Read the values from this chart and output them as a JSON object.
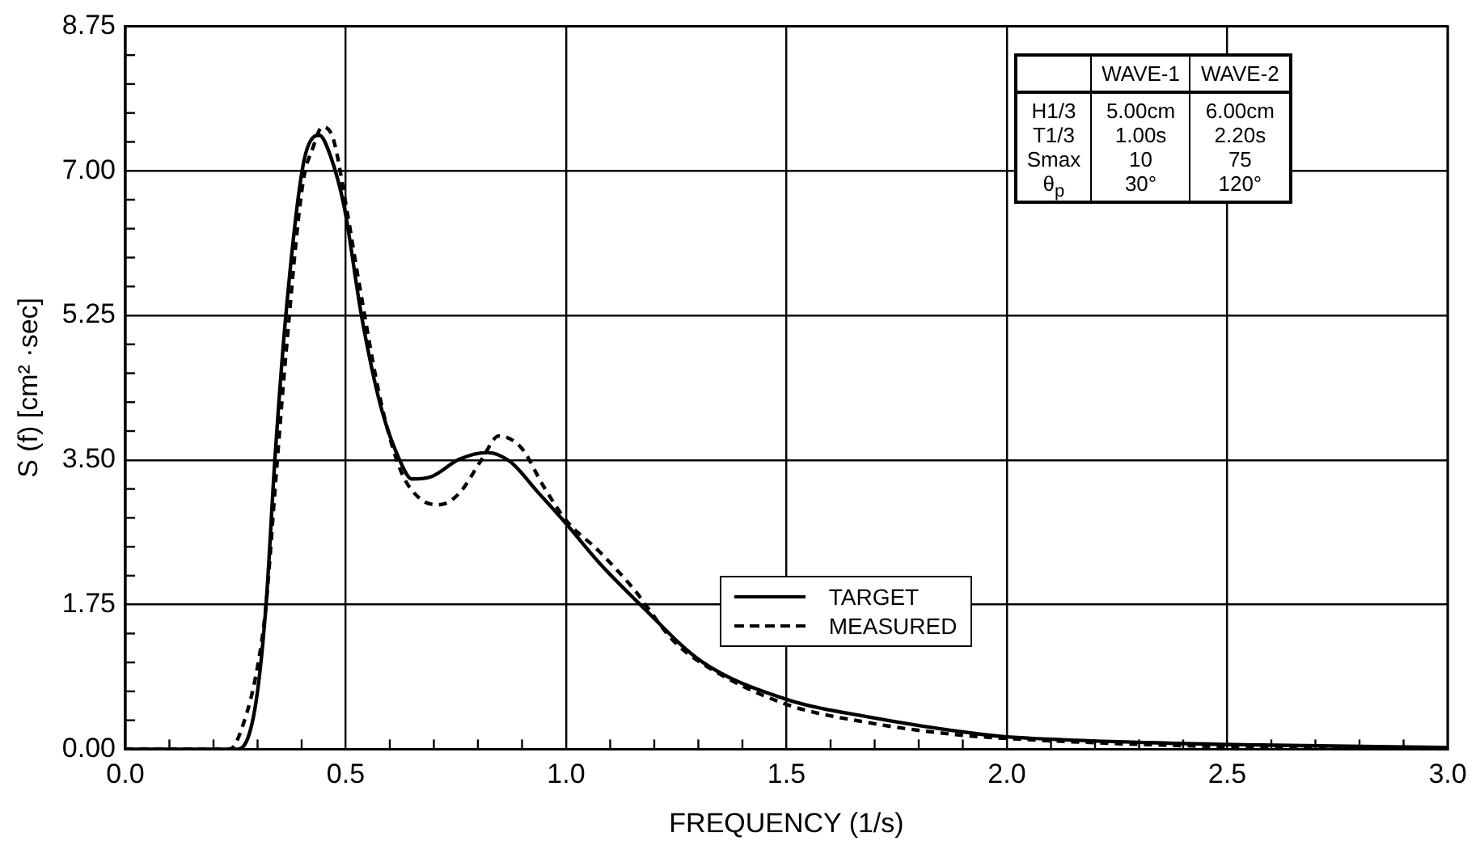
{
  "chart_data": {
    "type": "line",
    "xlabel": "FREQUENCY (1/s)",
    "ylabel": "S (f) [cm² ·sec]",
    "xlim": [
      0,
      3
    ],
    "ylim": [
      0,
      8.75
    ],
    "xticks": [
      {
        "value": 0,
        "label": "0.0"
      },
      {
        "value": 0.1,
        "label": null
      },
      {
        "value": 0.2,
        "label": null
      },
      {
        "value": 0.3,
        "label": null
      },
      {
        "value": 0.4,
        "label": null
      },
      {
        "value": 0.5,
        "label": "0.5"
      },
      {
        "value": 0.6,
        "label": null
      },
      {
        "value": 0.7,
        "label": null
      },
      {
        "value": 0.8,
        "label": null
      },
      {
        "value": 0.9,
        "label": null
      },
      {
        "value": 1,
        "label": "1.0"
      },
      {
        "value": 1.1,
        "label": null
      },
      {
        "value": 1.2,
        "label": null
      },
      {
        "value": 1.3,
        "label": null
      },
      {
        "value": 1.4,
        "label": null
      },
      {
        "value": 1.5,
        "label": "1.5"
      },
      {
        "value": 1.6,
        "label": null
      },
      {
        "value": 1.7,
        "label": null
      },
      {
        "value": 1.8,
        "label": null
      },
      {
        "value": 1.9,
        "label": null
      },
      {
        "value": 2,
        "label": "2.0"
      },
      {
        "value": 2.1,
        "label": null
      },
      {
        "value": 2.2,
        "label": null
      },
      {
        "value": 2.3,
        "label": null
      },
      {
        "value": 2.4,
        "label": null
      },
      {
        "value": 2.5,
        "label": "2.5"
      },
      {
        "value": 2.6,
        "label": null
      },
      {
        "value": 2.7,
        "label": null
      },
      {
        "value": 2.8,
        "label": null
      },
      {
        "value": 2.9,
        "label": null
      },
      {
        "value": 3,
        "label": "3.0"
      }
    ],
    "yticks": [
      {
        "value": 0,
        "label": "0.00"
      },
      {
        "value": 0.35,
        "label": null
      },
      {
        "value": 0.7,
        "label": null
      },
      {
        "value": 1.05,
        "label": null
      },
      {
        "value": 1.4,
        "label": null
      },
      {
        "value": 1.75,
        "label": "1.75"
      },
      {
        "value": 2.1,
        "label": null
      },
      {
        "value": 2.45,
        "label": null
      },
      {
        "value": 2.8,
        "label": null
      },
      {
        "value": 3.15,
        "label": null
      },
      {
        "value": 3.5,
        "label": "3.50"
      },
      {
        "value": 3.85,
        "label": null
      },
      {
        "value": 4.2,
        "label": null
      },
      {
        "value": 4.55,
        "label": null
      },
      {
        "value": 4.9,
        "label": null
      },
      {
        "value": 5.25,
        "label": "5.25"
      },
      {
        "value": 5.6,
        "label": null
      },
      {
        "value": 5.95,
        "label": null
      },
      {
        "value": 6.3,
        "label": null
      },
      {
        "value": 6.65,
        "label": null
      },
      {
        "value": 7,
        "label": "7.00"
      },
      {
        "value": 7.35,
        "label": null
      },
      {
        "value": 7.7,
        "label": null
      },
      {
        "value": 8.05,
        "label": null
      },
      {
        "value": 8.4,
        "label": null
      },
      {
        "value": 8.75,
        "label": "8.75"
      }
    ],
    "grid": true,
    "legend": "bottom",
    "marker": "none",
    "series": [
      {
        "name": "TARGET",
        "color": "#000000",
        "line_style": "solid",
        "x": [
          0,
          0.256,
          0.294,
          0.319,
          0.339,
          0.364,
          0.402,
          0.427,
          0.44,
          0.466,
          0.497,
          0.536,
          0.58,
          0.624,
          0.65,
          0.695,
          0.758,
          0.822,
          0.873,
          0.936,
          1.0,
          1.076,
          1.172,
          1.305,
          1.496,
          1.687,
          1.942,
          2.0,
          2.32,
          2.577,
          3.0
        ],
        "values": [
          0,
          0,
          0.49,
          1.73,
          3.48,
          5.24,
          7.03,
          7.41,
          7.43,
          7.17,
          6.55,
          5.24,
          4.14,
          3.48,
          3.27,
          3.3,
          3.51,
          3.59,
          3.48,
          3.11,
          2.73,
          2.25,
          1.73,
          1.07,
          0.61,
          0.39,
          0.18,
          0.15,
          0.08,
          0.05,
          0.02
        ]
      },
      {
        "name": "MEASURED",
        "color": "#000000",
        "line_style": "dashed",
        "x": [
          0,
          0.237,
          0.268,
          0.3,
          0.319,
          0.339,
          0.364,
          0.402,
          0.427,
          0.447,
          0.472,
          0.504,
          0.53,
          0.58,
          0.624,
          0.669,
          0.714,
          0.758,
          0.809,
          0.847,
          0.898,
          0.949,
          1.0,
          1.076,
          1.153,
          1.242,
          1.305,
          1.496,
          1.687,
          1.878,
          2.0,
          2.5,
          3.0
        ],
        "values": [
          0,
          0,
          0.31,
          1.0,
          1.73,
          3.1,
          4.76,
          6.82,
          7.3,
          7.53,
          7.38,
          6.48,
          5.65,
          4.2,
          3.38,
          3.03,
          2.96,
          3.1,
          3.51,
          3.79,
          3.65,
          3.18,
          2.77,
          2.39,
          1.94,
          1.32,
          1.05,
          0.55,
          0.32,
          0.18,
          0.13,
          0.03,
          0.01
        ]
      }
    ],
    "annotations": [
      "WAVE-1",
      "WAVE-2",
      "H1/3",
      "5.00cm",
      "6.00cm",
      "T1/3",
      "1.00s",
      "2.20s",
      "Smax",
      "10",
      "75",
      "θ$_{p}$",
      "30°",
      "120°"
    ]
  }
}
